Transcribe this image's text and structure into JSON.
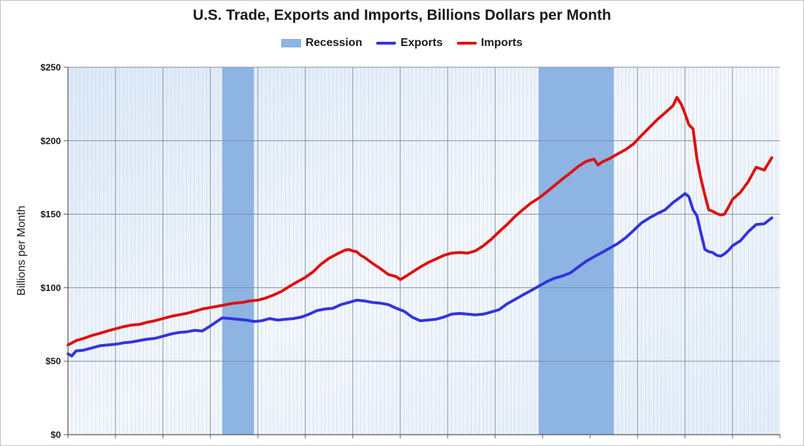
{
  "chart_data": {
    "type": "line",
    "title": "U.S. Trade, Exports and Imports, Billions Dollars per Month",
    "ylabel": "Billions per Month",
    "xlabel": "",
    "ylim": [
      0,
      250
    ],
    "xlim": [
      1998.0,
      2013.0
    ],
    "yticks": [
      {
        "value": 0,
        "label": "$0"
      },
      {
        "value": 50,
        "label": "$50"
      },
      {
        "value": 100,
        "label": "$100"
      },
      {
        "value": 150,
        "label": "$150"
      },
      {
        "value": 200,
        "label": "$200"
      },
      {
        "value": 250,
        "label": "$250"
      }
    ],
    "grid": true,
    "legend_position": "top-center",
    "legend": [
      {
        "name": "Recession",
        "kind": "band",
        "color": "#8db4e2"
      },
      {
        "name": "Exports",
        "kind": "line",
        "color": "#3333dd"
      },
      {
        "name": "Imports",
        "kind": "line",
        "color": "#dd1111"
      }
    ],
    "recessions": [
      {
        "start": 2001.25,
        "end": 2001.917
      },
      {
        "start": 2007.917,
        "end": 2009.5
      }
    ],
    "series": [
      {
        "name": "Exports",
        "color": "#3333dd",
        "points": [
          [
            1998.0,
            55
          ],
          [
            1998.08,
            53.5
          ],
          [
            1998.17,
            57
          ],
          [
            1998.33,
            57.5
          ],
          [
            1998.5,
            59
          ],
          [
            1998.67,
            60.5
          ],
          [
            1998.83,
            61
          ],
          [
            1999.0,
            61.5
          ],
          [
            1999.17,
            62.5
          ],
          [
            1999.33,
            63
          ],
          [
            1999.5,
            64
          ],
          [
            1999.67,
            65
          ],
          [
            1999.83,
            65.5
          ],
          [
            2000.0,
            67
          ],
          [
            2000.17,
            68.5
          ],
          [
            2000.33,
            69.5
          ],
          [
            2000.5,
            70
          ],
          [
            2000.67,
            71
          ],
          [
            2000.83,
            70.5
          ],
          [
            2001.0,
            74
          ],
          [
            2001.25,
            79.5
          ],
          [
            2001.42,
            79
          ],
          [
            2001.58,
            78.5
          ],
          [
            2001.75,
            78
          ],
          [
            2001.92,
            77
          ],
          [
            2002.08,
            77.5
          ],
          [
            2002.25,
            79
          ],
          [
            2002.42,
            78
          ],
          [
            2002.58,
            78.5
          ],
          [
            2002.75,
            79
          ],
          [
            2002.92,
            80
          ],
          [
            2003.08,
            82
          ],
          [
            2003.25,
            84.5
          ],
          [
            2003.42,
            85.5
          ],
          [
            2003.58,
            86
          ],
          [
            2003.75,
            88.5
          ],
          [
            2003.92,
            90
          ],
          [
            2004.08,
            91.5
          ],
          [
            2004.25,
            91
          ],
          [
            2004.42,
            90
          ],
          [
            2004.58,
            89.5
          ],
          [
            2004.75,
            88.5
          ],
          [
            2004.92,
            86
          ],
          [
            2005.08,
            84
          ],
          [
            2005.25,
            80
          ],
          [
            2005.42,
            77.5
          ],
          [
            2005.58,
            78
          ],
          [
            2005.75,
            78.5
          ],
          [
            2005.92,
            80
          ],
          [
            2006.08,
            82
          ],
          [
            2006.25,
            82.5
          ],
          [
            2006.42,
            82
          ],
          [
            2006.58,
            81.5
          ],
          [
            2006.75,
            82
          ],
          [
            2006.92,
            83.5
          ],
          [
            2007.08,
            85
          ],
          [
            2007.25,
            89
          ],
          [
            2007.42,
            92
          ],
          [
            2007.58,
            95
          ],
          [
            2007.75,
            98
          ],
          [
            2007.92,
            101
          ],
          [
            2008.08,
            104
          ],
          [
            2008.25,
            106.5
          ],
          [
            2008.42,
            108
          ],
          [
            2008.58,
            110
          ],
          [
            2008.75,
            114
          ],
          [
            2008.92,
            118
          ],
          [
            2009.08,
            121
          ],
          [
            2009.25,
            124
          ],
          [
            2009.42,
            127
          ],
          [
            2009.58,
            130
          ],
          [
            2009.75,
            134
          ],
          [
            2009.92,
            139
          ],
          [
            2010.08,
            144
          ],
          [
            2010.25,
            147.5
          ],
          [
            2010.42,
            150.5
          ],
          [
            2010.58,
            153
          ],
          [
            2010.75,
            158
          ],
          [
            2010.92,
            162
          ],
          [
            2011.0,
            164
          ],
          [
            2011.08,
            162
          ],
          [
            2011.17,
            153
          ],
          [
            2011.25,
            149
          ],
          [
            2011.33,
            138
          ],
          [
            2011.42,
            126
          ],
          [
            2011.5,
            124.5
          ],
          [
            2011.58,
            124
          ],
          [
            2011.67,
            122
          ],
          [
            2011.75,
            121.5
          ],
          [
            2011.83,
            123
          ],
          [
            2011.92,
            125.5
          ],
          [
            2012.0,
            128.5
          ],
          [
            2012.17,
            132
          ],
          [
            2012.33,
            138
          ],
          [
            2012.5,
            143
          ],
          [
            2012.67,
            143.5
          ],
          [
            2012.83,
            147.5
          ]
        ]
      },
      {
        "name": "Imports",
        "color": "#dd1111",
        "points": [
          [
            1998.0,
            61
          ],
          [
            1998.17,
            64
          ],
          [
            1998.33,
            65.5
          ],
          [
            1998.5,
            67.5
          ],
          [
            1998.67,
            69
          ],
          [
            1998.83,
            70.5
          ],
          [
            1999.0,
            72
          ],
          [
            1999.17,
            73.5
          ],
          [
            1999.33,
            74.5
          ],
          [
            1999.5,
            75
          ],
          [
            1999.67,
            76.5
          ],
          [
            1999.83,
            77.5
          ],
          [
            2000.0,
            79
          ],
          [
            2000.17,
            80.5
          ],
          [
            2000.33,
            81.5
          ],
          [
            2000.5,
            82.5
          ],
          [
            2000.67,
            84
          ],
          [
            2000.83,
            85.5
          ],
          [
            2001.0,
            86.5
          ],
          [
            2001.17,
            87.5
          ],
          [
            2001.33,
            88.5
          ],
          [
            2001.5,
            89.5
          ],
          [
            2001.67,
            90
          ],
          [
            2001.83,
            91
          ],
          [
            2002.0,
            91.5
          ],
          [
            2002.17,
            93
          ],
          [
            2002.33,
            95
          ],
          [
            2002.5,
            97.5
          ],
          [
            2002.67,
            101
          ],
          [
            2002.83,
            104
          ],
          [
            2003.0,
            107
          ],
          [
            2003.17,
            111
          ],
          [
            2003.33,
            116
          ],
          [
            2003.5,
            120
          ],
          [
            2003.67,
            123
          ],
          [
            2003.83,
            125.5
          ],
          [
            2003.92,
            126
          ],
          [
            2004.0,
            125
          ],
          [
            2004.08,
            124.5
          ],
          [
            2004.17,
            122
          ],
          [
            2004.25,
            120.5
          ],
          [
            2004.42,
            116.5
          ],
          [
            2004.58,
            113
          ],
          [
            2004.75,
            109
          ],
          [
            2004.92,
            107.5
          ],
          [
            2005.0,
            105.5
          ],
          [
            2005.08,
            107
          ],
          [
            2005.25,
            110.5
          ],
          [
            2005.42,
            114
          ],
          [
            2005.58,
            117
          ],
          [
            2005.75,
            119.5
          ],
          [
            2005.92,
            122
          ],
          [
            2006.08,
            123.5
          ],
          [
            2006.25,
            124
          ],
          [
            2006.42,
            123.5
          ],
          [
            2006.58,
            125
          ],
          [
            2006.75,
            128.5
          ],
          [
            2006.92,
            133
          ],
          [
            2007.08,
            138
          ],
          [
            2007.25,
            143
          ],
          [
            2007.42,
            148.5
          ],
          [
            2007.58,
            153
          ],
          [
            2007.75,
            157.5
          ],
          [
            2007.92,
            161
          ],
          [
            2008.08,
            165
          ],
          [
            2008.25,
            169.5
          ],
          [
            2008.42,
            174
          ],
          [
            2008.58,
            178
          ],
          [
            2008.75,
            182.5
          ],
          [
            2008.92,
            186
          ],
          [
            2009.08,
            187.5
          ],
          [
            2009.17,
            183.5
          ],
          [
            2009.25,
            185.5
          ],
          [
            2009.42,
            188
          ],
          [
            2009.58,
            191
          ],
          [
            2009.75,
            194
          ],
          [
            2009.92,
            198
          ],
          [
            2010.08,
            203.5
          ],
          [
            2010.25,
            209
          ],
          [
            2010.42,
            214.5
          ],
          [
            2010.58,
            219
          ],
          [
            2010.75,
            224
          ],
          [
            2010.83,
            229.5
          ],
          [
            2010.92,
            225
          ],
          [
            2011.0,
            218.5
          ],
          [
            2011.08,
            211
          ],
          [
            2011.17,
            208
          ],
          [
            2011.25,
            188
          ],
          [
            2011.33,
            175
          ],
          [
            2011.42,
            163
          ],
          [
            2011.5,
            153
          ],
          [
            2011.58,
            152
          ],
          [
            2011.67,
            150.5
          ],
          [
            2011.75,
            149.5
          ],
          [
            2011.83,
            150
          ],
          [
            2011.92,
            155
          ],
          [
            2012.0,
            160
          ],
          [
            2012.17,
            165
          ],
          [
            2012.33,
            172
          ],
          [
            2012.5,
            182
          ],
          [
            2012.67,
            180
          ],
          [
            2012.83,
            188.5
          ]
        ]
      }
    ]
  }
}
